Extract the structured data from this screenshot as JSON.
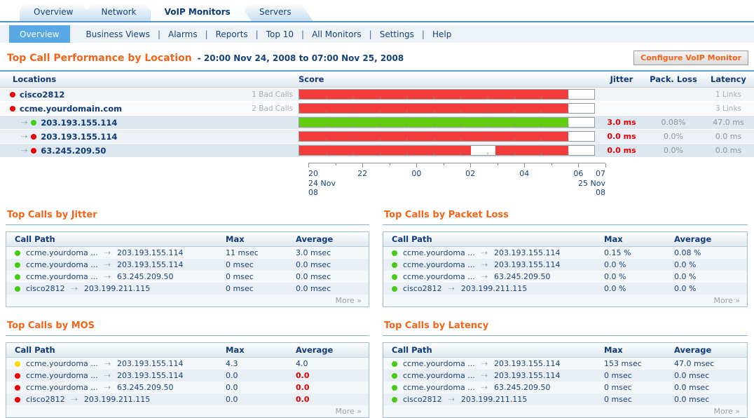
{
  "colors": {
    "accent_orange": "#f26419",
    "navy": "#15427c",
    "alert_red": "#e60000",
    "bar_red": "#f23c3c",
    "bar_green": "#64cc0e",
    "bar_empty": "#fdfdfd",
    "dot_red": "#ee0000",
    "dot_green": "#44cc11",
    "dot_yellow": "#ffd800",
    "subnav_selected_bg": "#57a8e4"
  },
  "tabs": [
    {
      "label": "Overview",
      "active": false
    },
    {
      "label": "Network",
      "active": false
    },
    {
      "label": "VoIP Monitors",
      "active": true
    },
    {
      "label": "Servers",
      "active": false
    }
  ],
  "subnav": [
    {
      "label": "Overview",
      "selected": true
    },
    {
      "label": "Business Views",
      "selected": false
    },
    {
      "label": "Alarms",
      "selected": false
    },
    {
      "label": "Reports",
      "selected": false
    },
    {
      "label": "Top 10",
      "selected": false
    },
    {
      "label": "All Monitors",
      "selected": false
    },
    {
      "label": "Settings",
      "selected": false
    },
    {
      "label": "Help",
      "selected": false
    }
  ],
  "header": {
    "title": "Top Call Performance by Location",
    "date_range": "- 20:00 Nov 24, 2008 to 07:00 Nov 25, 2008",
    "configure_button": "Configure VoIP Monitor"
  },
  "location_table": {
    "columns": {
      "locations": "Locations",
      "score": "Score",
      "jitter": "Jitter",
      "pack_loss": "Pack. Loss",
      "latency": "Latency"
    },
    "rows": [
      {
        "kind": "device",
        "status": "red",
        "name": "cisco2812",
        "bad_calls": "1 Bad Calls",
        "links": "1 Links",
        "bar": [
          {
            "color": "red",
            "pct": 91.2
          },
          {
            "color": "white",
            "pct": 8.8
          }
        ]
      },
      {
        "kind": "device",
        "status": "red",
        "name": "ccme.yourdomain.com",
        "bad_calls": "2 Bad Calls",
        "links": "3 Links",
        "bar": [
          {
            "color": "red",
            "pct": 91.2
          },
          {
            "color": "white",
            "pct": 8.8
          }
        ]
      },
      {
        "kind": "link",
        "status": "green",
        "name": "203.193.155.114",
        "jitter": "3.0 ms",
        "pack_loss": "0.08%",
        "latency": "47.0 ms",
        "bar": [
          {
            "color": "green",
            "pct": 91.2
          },
          {
            "color": "white",
            "pct": 8.8
          }
        ]
      },
      {
        "kind": "link",
        "status": "red",
        "name": "203.193.155.114",
        "jitter": "0.0 ms",
        "pack_loss": "0.0%",
        "latency": "0.0 ms",
        "bar": [
          {
            "color": "red",
            "pct": 91.2
          },
          {
            "color": "white",
            "pct": 8.8
          }
        ]
      },
      {
        "kind": "link",
        "status": "red",
        "name": "63.245.209.50",
        "jitter": "0.0 ms",
        "pack_loss": "0.0%",
        "latency": "0.0 ms",
        "bar": [
          {
            "color": "red",
            "pct": 58.1
          },
          {
            "color": "white",
            "pct": 8.5
          },
          {
            "color": "red",
            "pct": 24.6
          },
          {
            "color": "white",
            "pct": 8.8
          }
        ]
      }
    ],
    "axis": {
      "hour_ticks": 12,
      "labels": [
        {
          "text": "20",
          "pos": 0
        },
        {
          "text": "22",
          "pos": 18.2
        },
        {
          "text": "00",
          "pos": 36.4
        },
        {
          "text": "02",
          "pos": 54.5
        },
        {
          "text": "04",
          "pos": 72.7
        },
        {
          "text": "06",
          "pos": 90.9
        },
        {
          "text": "07",
          "pos": 100
        }
      ],
      "start_lines": [
        "24 Nov",
        "08"
      ],
      "end_lines": [
        "25 Nov",
        "08"
      ]
    }
  },
  "sections": [
    {
      "title": "Top Calls by Jitter",
      "columns": {
        "path": "Call Path",
        "max": "Max",
        "avg": "Average"
      },
      "more": "More »",
      "rows": [
        {
          "status": "green",
          "from": "ccme.yourdoma ...",
          "to": "203.193.155.114",
          "max": "11 msec",
          "avg": "3.0 msec",
          "avg_alert": false
        },
        {
          "status": "green",
          "from": "ccme.yourdoma ...",
          "to": "203.193.155.114",
          "max": "0 msec",
          "avg": "0.0 msec",
          "avg_alert": false
        },
        {
          "status": "green",
          "from": "ccme.yourdoma ...",
          "to": "63.245.209.50",
          "max": "0 msec",
          "avg": "0.0 msec",
          "avg_alert": false
        },
        {
          "status": "green",
          "from": "cisco2812",
          "to": "203.199.211.115",
          "max": "0 msec",
          "avg": "0.0 msec",
          "avg_alert": false
        }
      ]
    },
    {
      "title": "Top Calls by Packet Loss",
      "columns": {
        "path": "Call Path",
        "max": "Max",
        "avg": "Average"
      },
      "more": "More »",
      "rows": [
        {
          "status": "green",
          "from": "ccme.yourdoma ...",
          "to": "203.193.155.114",
          "max": "0.15 %",
          "avg": "0.08 %",
          "avg_alert": false
        },
        {
          "status": "green",
          "from": "ccme.yourdoma ...",
          "to": "203.193.155.114",
          "max": "0.0 %",
          "avg": "0.0 %",
          "avg_alert": false
        },
        {
          "status": "green",
          "from": "ccme.yourdoma ...",
          "to": "63.245.209.50",
          "max": "0.0 %",
          "avg": "0.0 %",
          "avg_alert": false
        },
        {
          "status": "green",
          "from": "cisco2812",
          "to": "203.199.211.115",
          "max": "0.0 %",
          "avg": "0.0 %",
          "avg_alert": false
        }
      ]
    },
    {
      "title": "Top Calls by MOS",
      "columns": {
        "path": "Call Path",
        "max": "Max",
        "avg": "Average"
      },
      "more": "More »",
      "rows": [
        {
          "status": "yellow",
          "from": "ccme.yourdoma ...",
          "to": "203.193.155.114",
          "max": "4.3",
          "avg": "4.0",
          "avg_alert": false
        },
        {
          "status": "red",
          "from": "ccme.yourdoma ...",
          "to": "203.193.155.114",
          "max": "0.0",
          "avg": "0.0",
          "avg_alert": true
        },
        {
          "status": "red",
          "from": "ccme.yourdoma ...",
          "to": "63.245.209.50",
          "max": "0.0",
          "avg": "0.0",
          "avg_alert": true
        },
        {
          "status": "red",
          "from": "cisco2812",
          "to": "203.199.211.115",
          "max": "0.0",
          "avg": "0.0",
          "avg_alert": true
        }
      ]
    },
    {
      "title": "Top Calls by Latency",
      "columns": {
        "path": "Call Path",
        "max": "Max",
        "avg": "Average"
      },
      "more": "More »",
      "rows": [
        {
          "status": "green",
          "from": "ccme.yourdoma ...",
          "to": "203.193.155.114",
          "max": "153 msec",
          "avg": "47.0 msec",
          "avg_alert": false
        },
        {
          "status": "green",
          "from": "ccme.yourdoma ...",
          "to": "203.193.155.114",
          "max": "0 msec",
          "avg": "0.0 msec",
          "avg_alert": false
        },
        {
          "status": "green",
          "from": "ccme.yourdoma ...",
          "to": "63.245.209.50",
          "max": "0 msec",
          "avg": "0.0 msec",
          "avg_alert": false
        },
        {
          "status": "green",
          "from": "cisco2812",
          "to": "203.199.211.115",
          "max": "0 msec",
          "avg": "0.0 msec",
          "avg_alert": false
        }
      ]
    }
  ]
}
